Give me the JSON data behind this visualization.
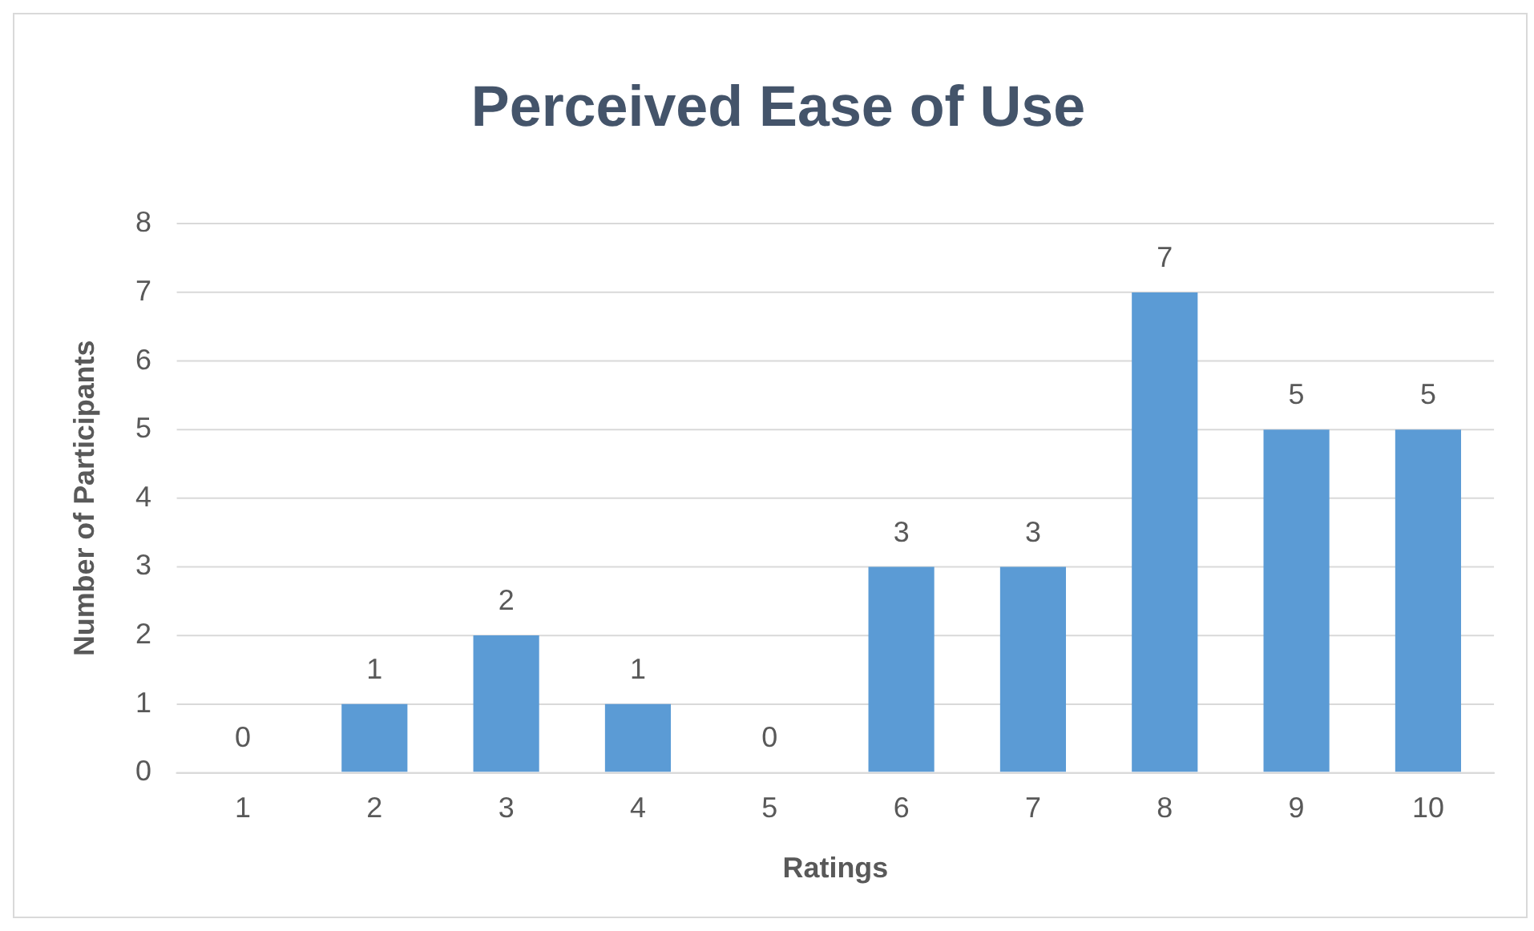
{
  "chart_data": {
    "type": "bar",
    "title": "Perceived Ease of Use",
    "xlabel": "Ratings",
    "ylabel": "Number of Participants",
    "categories": [
      "1",
      "2",
      "3",
      "4",
      "5",
      "6",
      "7",
      "8",
      "9",
      "10"
    ],
    "values": [
      0,
      1,
      2,
      1,
      0,
      3,
      3,
      7,
      5,
      5
    ],
    "color": "#5b9bd5",
    "ylim": [
      0,
      8
    ],
    "yticks": [
      0,
      1,
      2,
      3,
      4,
      5,
      6,
      7,
      8
    ],
    "grid": "y",
    "data_labels": true,
    "legend": false
  }
}
